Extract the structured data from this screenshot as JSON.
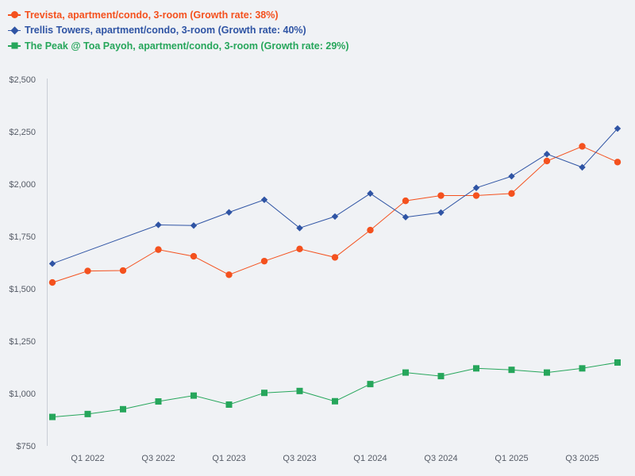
{
  "chart_data": {
    "type": "line",
    "title": "",
    "xlabel": "",
    "ylabel": "",
    "ylim": [
      750,
      2500
    ],
    "yticks": [
      750,
      1000,
      1250,
      1500,
      1750,
      2000,
      2250,
      2500
    ],
    "ytick_labels": [
      "$750",
      "$1,000",
      "$1,250",
      "$1,500",
      "$1,750",
      "$2,000",
      "$2,250",
      "$2,500"
    ],
    "x_periods": [
      "Q4 2021",
      "Q1 2022",
      "Q2 2022",
      "Q3 2022",
      "Q4 2022",
      "Q1 2023",
      "Q2 2023",
      "Q3 2023",
      "Q4 2023",
      "Q1 2024",
      "Q2 2024",
      "Q3 2024",
      "Q4 2024",
      "Q1 2025",
      "Q2 2025",
      "Q3 2025",
      "Q4 2025"
    ],
    "xtick_labels": [
      {
        "label": "Q1 2022",
        "index": 1
      },
      {
        "label": "Q3 2022",
        "index": 3
      },
      {
        "label": "Q1 2023",
        "index": 5
      },
      {
        "label": "Q3 2023",
        "index": 7
      },
      {
        "label": "Q1 2024",
        "index": 9
      },
      {
        "label": "Q3 2024",
        "index": 11
      },
      {
        "label": "Q1 2025",
        "index": 13
      },
      {
        "label": "Q3 2025",
        "index": 15
      }
    ],
    "grid": false,
    "legend_position": "top-left",
    "series": [
      {
        "name": "Trevista, apartment/condo, 3-room (Growth rate: 38%)",
        "color": "#f4511e",
        "marker": "circle",
        "values": [
          1530,
          1585,
          1587,
          1687,
          1655,
          1567,
          1632,
          1690,
          1650,
          1780,
          1920,
          1945,
          1945,
          1955,
          2110,
          2180,
          2105
        ]
      },
      {
        "name": "Trellis Towers, apartment/condo, 3-room (Growth rate: 40%)",
        "color": "#2f54a4",
        "marker": "diamond",
        "values": [
          1620,
          null,
          null,
          1805,
          1802,
          1865,
          1925,
          1790,
          1845,
          1955,
          1842,
          1864,
          1982,
          2037,
          2143,
          2080,
          2265
        ]
      },
      {
        "name": "The Peak @ Toa Payoh, apartment/condo, 3-room (Growth rate: 29%)",
        "color": "#26a65b",
        "marker": "square",
        "values": [
          888,
          902,
          925,
          962,
          990,
          947,
          1003,
          1012,
          963,
          1045,
          1100,
          1083,
          1120,
          1113,
          1100,
          1120,
          1148
        ]
      }
    ]
  }
}
